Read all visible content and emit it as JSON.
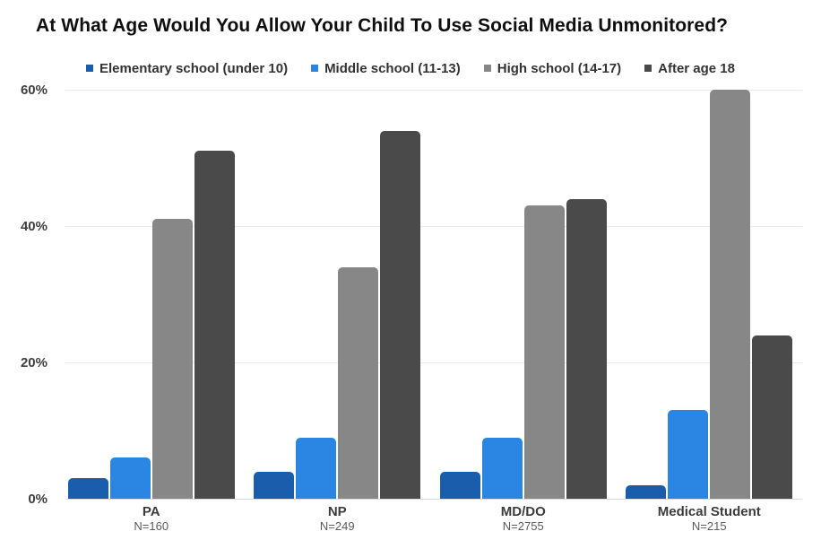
{
  "chart_data": {
    "type": "bar",
    "title": "At What Age Would You Allow Your Child To Use Social Media Unmonitored?",
    "categories": [
      "PA",
      "NP",
      "MD/DO",
      "Medical Student"
    ],
    "category_sublabels": [
      "N=160",
      "N=249",
      "N=2755",
      "N=215"
    ],
    "series": [
      {
        "name": "Elementary school (under 10)",
        "color": "#1a5dac",
        "values": [
          3,
          4,
          4,
          2
        ]
      },
      {
        "name": "Middle school (11-13)",
        "color": "#2b86e3",
        "values": [
          6,
          9,
          9,
          13
        ]
      },
      {
        "name": "High school (14-17)",
        "color": "#878787",
        "values": [
          41,
          34,
          43,
          60
        ]
      },
      {
        "name": "After age 18",
        "color": "#4a4a4a",
        "values": [
          51,
          54,
          44,
          24
        ]
      }
    ],
    "y_ticks": [
      {
        "value": 0,
        "label": "0%"
      },
      {
        "value": 20,
        "label": "20%"
      },
      {
        "value": 40,
        "label": "40%"
      },
      {
        "value": 60,
        "label": "60%"
      }
    ],
    "ylim": [
      0,
      60
    ],
    "grid": true,
    "legend_position": "top",
    "xlabel": "",
    "ylabel": ""
  },
  "colors": {
    "background": "#ffffff",
    "gridline": "#eaeaea",
    "axis_text": "#3e3e3e",
    "title_text": "#0f0f0f",
    "legend_text": "#333333",
    "sublabel_text": "#5a5a5a"
  }
}
